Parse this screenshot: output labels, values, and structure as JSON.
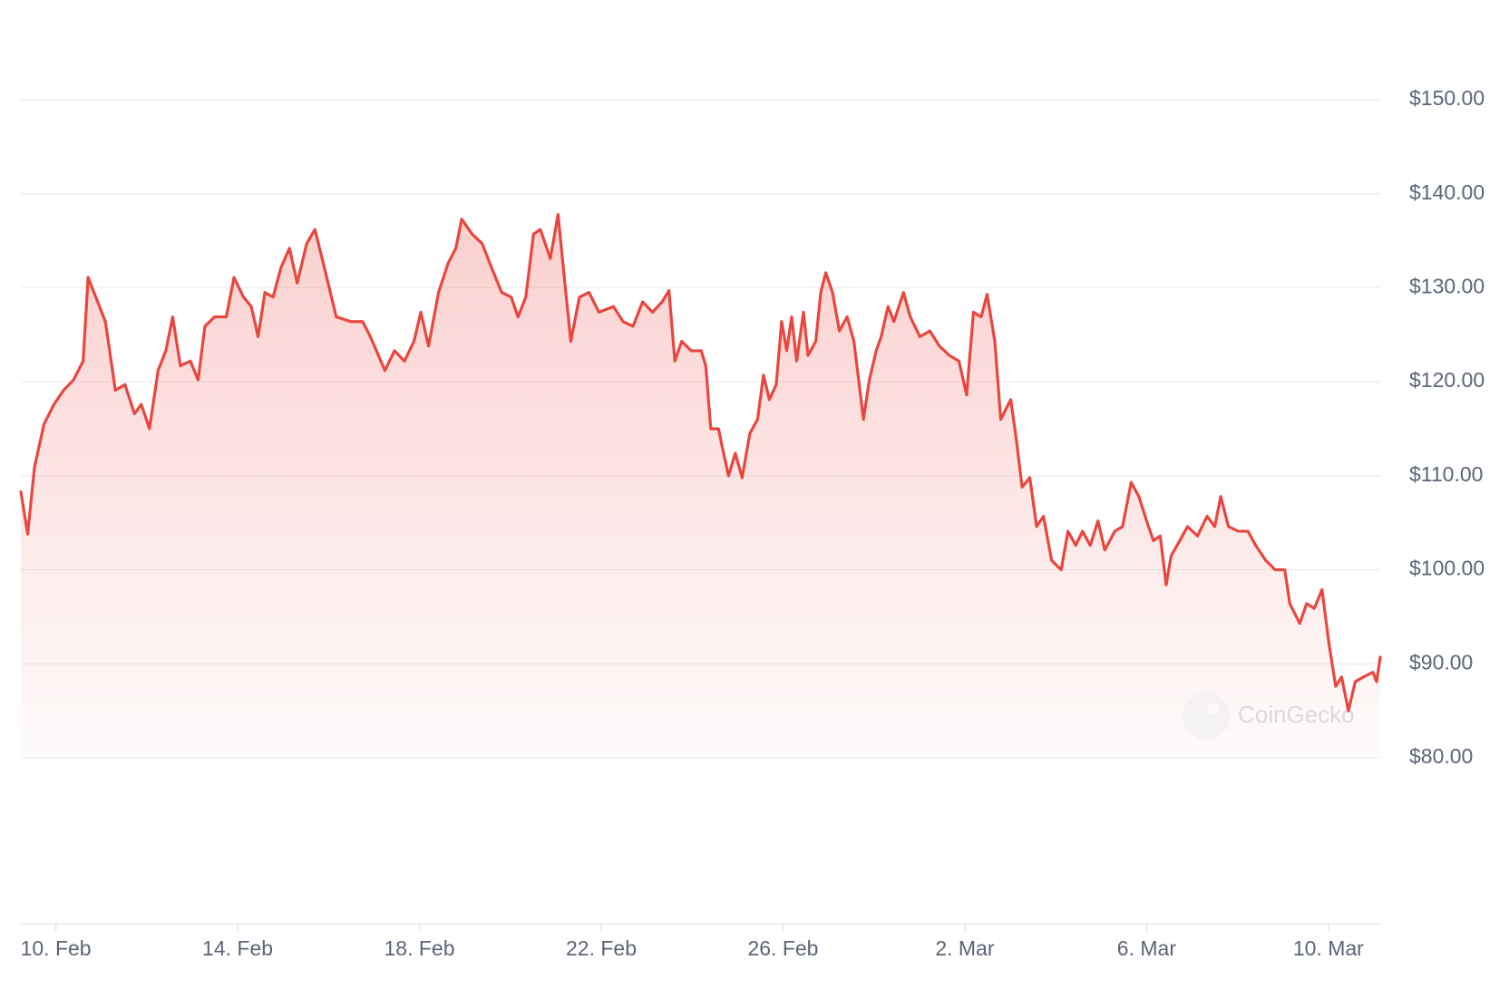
{
  "chart_data": {
    "type": "line",
    "color": "#e8473f",
    "watermark": "CoinGecko",
    "grid": true,
    "x": [
      -0.77,
      -0.62,
      -0.47,
      -0.26,
      -0.04,
      0.17,
      0.39,
      0.6,
      0.71,
      0.92,
      1.09,
      1.31,
      1.52,
      1.73,
      1.88,
      2.06,
      2.25,
      2.42,
      2.57,
      2.74,
      2.96,
      3.13,
      3.28,
      3.49,
      3.75,
      3.92,
      4.13,
      4.3,
      4.45,
      4.6,
      4.78,
      4.95,
      5.14,
      5.31,
      5.52,
      5.7,
      5.91,
      6.17,
      6.49,
      6.75,
      6.92,
      7.24,
      7.45,
      7.67,
      7.88,
      8.03,
      8.2,
      8.42,
      8.63,
      8.8,
      8.93,
      9.16,
      9.38,
      9.59,
      9.81,
      10.02,
      10.17,
      10.34,
      10.51,
      10.66,
      10.88,
      11.05,
      11.2,
      11.33,
      11.52,
      11.73,
      11.95,
      12.27,
      12.48,
      12.7,
      12.91,
      13.13,
      13.34,
      13.49,
      13.62,
      13.77,
      13.98,
      14.2,
      14.3,
      14.41,
      14.58,
      14.67,
      14.8,
      14.95,
      15.1,
      15.27,
      15.44,
      15.57,
      15.7,
      15.85,
      15.97,
      16.08,
      16.19,
      16.3,
      16.45,
      16.55,
      16.72,
      16.83,
      16.94,
      17.09,
      17.24,
      17.41,
      17.56,
      17.77,
      17.9,
      18.05,
      18.16,
      18.31,
      18.44,
      18.65,
      18.8,
      19.01,
      19.23,
      19.44,
      19.66,
      19.87,
      20.04,
      20.19,
      20.36,
      20.49,
      20.66,
      20.79,
      21.01,
      21.13,
      21.26,
      21.43,
      21.58,
      21.73,
      21.91,
      22.12,
      22.27,
      22.44,
      22.59,
      22.76,
      22.93,
      23.08,
      23.3,
      23.47,
      23.66,
      23.83,
      24.0,
      24.15,
      24.3,
      24.43,
      24.54,
      24.73,
      24.9,
      25.12,
      25.33,
      25.5,
      25.63,
      25.8,
      26.02,
      26.23,
      26.4,
      26.62,
      26.83,
      27.04,
      27.15,
      27.37,
      27.52,
      27.69,
      27.86,
      28.01,
      28.16,
      28.29,
      28.44,
      28.59,
      28.77,
      28.98,
      29.06,
      29.14
    ],
    "values": [
      108.3,
      103.8,
      110.9,
      115.5,
      117.6,
      119.1,
      120.2,
      122.2,
      131.1,
      128.5,
      126.4,
      119.1,
      119.7,
      116.6,
      117.6,
      115.0,
      121.2,
      123.3,
      126.9,
      121.7,
      122.2,
      120.2,
      125.9,
      126.9,
      126.9,
      131.1,
      129.0,
      128.0,
      124.8,
      129.5,
      129.0,
      132.1,
      134.2,
      130.5,
      134.7,
      136.2,
      132.1,
      126.9,
      126.4,
      126.4,
      124.8,
      121.2,
      123.3,
      122.2,
      124.3,
      127.4,
      123.8,
      129.5,
      132.6,
      134.2,
      137.3,
      135.7,
      134.7,
      132.1,
      129.5,
      129.0,
      126.9,
      129.0,
      135.7,
      136.2,
      133.1,
      137.8,
      130.5,
      124.3,
      129.0,
      129.5,
      127.4,
      128.0,
      126.4,
      125.9,
      128.5,
      127.4,
      128.5,
      129.7,
      122.2,
      124.3,
      123.3,
      123.3,
      121.7,
      115.0,
      115.0,
      112.9,
      110.0,
      112.4,
      109.8,
      114.5,
      116.0,
      120.7,
      118.1,
      119.7,
      126.4,
      123.3,
      126.9,
      122.2,
      127.4,
      122.8,
      124.3,
      129.5,
      131.6,
      129.5,
      125.4,
      126.9,
      124.3,
      116.0,
      120.2,
      123.3,
      124.8,
      128.0,
      126.4,
      129.5,
      126.9,
      124.8,
      125.4,
      123.8,
      122.8,
      122.2,
      118.6,
      127.4,
      126.9,
      129.3,
      124.3,
      116.0,
      118.1,
      114.0,
      108.8,
      109.8,
      104.6,
      105.7,
      101.0,
      100.0,
      104.1,
      102.6,
      104.1,
      102.6,
      105.2,
      102.1,
      104.1,
      104.6,
      109.3,
      107.8,
      105.2,
      103.1,
      103.6,
      98.4,
      101.5,
      103.1,
      104.6,
      103.6,
      105.7,
      104.6,
      107.8,
      104.6,
      104.1,
      104.1,
      102.6,
      101.0,
      100.0,
      100.0,
      96.4,
      94.3,
      96.4,
      95.9,
      97.9,
      92.2,
      87.6,
      88.6,
      85.0,
      88.1,
      88.6,
      89.1,
      88.1,
      90.7
    ],
    "xlim": [
      -0.77,
      29.14
    ],
    "xticks": [
      {
        "value": 0,
        "label": "10. Feb"
      },
      {
        "value": 4,
        "label": "14. Feb"
      },
      {
        "value": 8,
        "label": "18. Feb"
      },
      {
        "value": 12,
        "label": "22. Feb"
      },
      {
        "value": 16,
        "label": "26. Feb"
      },
      {
        "value": 20,
        "label": "2. Mar"
      },
      {
        "value": 24,
        "label": "6. Mar"
      },
      {
        "value": 28,
        "label": "10. Mar"
      }
    ],
    "ylim": [
      80,
      150
    ],
    "yticks": [
      {
        "value": 80,
        "label": "$80.00"
      },
      {
        "value": 90,
        "label": "$90.00"
      },
      {
        "value": 100,
        "label": "$100.00"
      },
      {
        "value": 110,
        "label": "$110.00"
      },
      {
        "value": 120,
        "label": "$120.00"
      },
      {
        "value": 130,
        "label": "$130.00"
      },
      {
        "value": 140,
        "label": "$140.00"
      },
      {
        "value": 150,
        "label": "$150.00"
      }
    ]
  }
}
